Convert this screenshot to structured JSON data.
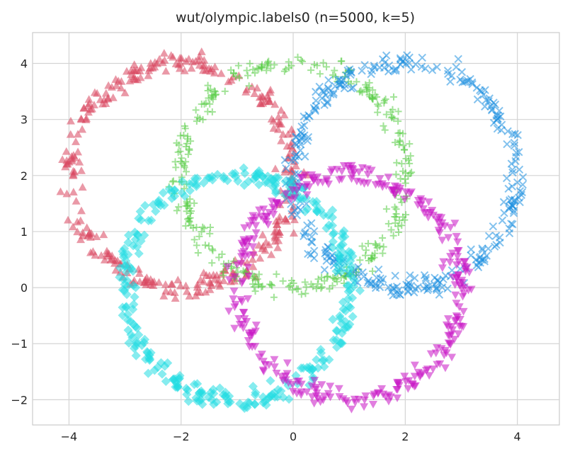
{
  "chart_data": {
    "type": "scatter",
    "title": "wut/olympic.labels0 (n=5000, k=5)",
    "xlabel": "",
    "ylabel": "",
    "xlim": [
      -4.65,
      4.75
    ],
    "ylim": [
      -2.45,
      4.55
    ],
    "xticks": [
      -4,
      -2,
      0,
      2,
      4
    ],
    "yticks": [
      -2,
      -1,
      0,
      1,
      2,
      3,
      4
    ],
    "xtick_labels": [
      "−4",
      "−2",
      "0",
      "2",
      "4"
    ],
    "ytick_labels": [
      "−2",
      "−1",
      "0",
      "1",
      "2",
      "3",
      "4"
    ],
    "grid": true,
    "legend": "none",
    "series": [
      {
        "marker": "triangle-up",
        "color": "#d9455e",
        "center": [
          -2.0,
          2.0
        ],
        "radius": 2.0,
        "points": 1000
      },
      {
        "marker": "plus",
        "color": "#55cc44",
        "center": [
          0.0,
          2.0
        ],
        "radius": 2.0,
        "points": 1000
      },
      {
        "marker": "x",
        "color": "#1e90e0",
        "center": [
          2.0,
          2.0
        ],
        "radius": 2.0,
        "points": 1000
      },
      {
        "marker": "diamond",
        "color": "#22dde2",
        "center": [
          -1.0,
          0.0
        ],
        "radius": 2.0,
        "points": 1000
      },
      {
        "marker": "triangle-down",
        "color": "#c814c4",
        "center": [
          1.0,
          0.0
        ],
        "radius": 2.0,
        "points": 1000
      }
    ]
  }
}
